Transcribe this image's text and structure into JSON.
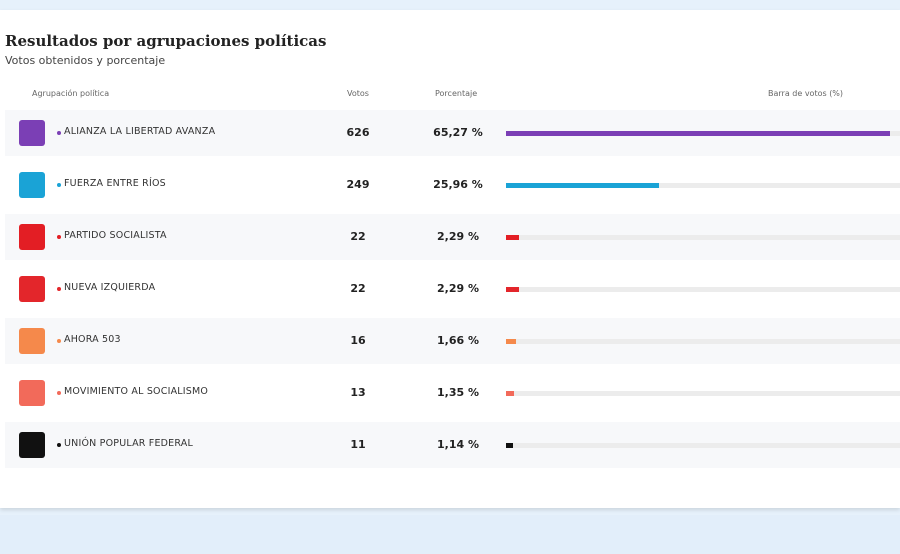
{
  "header": {
    "title": "Resultados por agrupaciones políticas",
    "subtitle": "Votos obtenidos y porcentaje"
  },
  "table": {
    "columns": [
      "Agrupación política",
      "Votos",
      "Porcentaje",
      "Barra de votos (%)"
    ],
    "rows": [
      {
        "name": "ALIANZA LA LIBERTAD AVANZA",
        "votes": 626,
        "percent": 65.27,
        "percent_label": "65,27 %",
        "color": "#7b3fb5"
      },
      {
        "name": "FUERZA ENTRE RÍOS",
        "votes": 249,
        "percent": 25.96,
        "percent_label": "25,96 %",
        "color": "#1aa3d6"
      },
      {
        "name": "PARTIDO SOCIALISTA",
        "votes": 22,
        "percent": 2.29,
        "percent_label": "2,29 %",
        "color": "#e31e24"
      },
      {
        "name": "NUEVA IZQUIERDA",
        "votes": 22,
        "percent": 2.29,
        "percent_label": "2,29 %",
        "color": "#e3262b"
      },
      {
        "name": "AHORA 503",
        "votes": 16,
        "percent": 1.66,
        "percent_label": "1,66 %",
        "color": "#f5894b"
      },
      {
        "name": "MOVIMIENTO AL SOCIALISMO",
        "votes": 13,
        "percent": 1.35,
        "percent_label": "1,35 %",
        "color": "#f26a5a"
      },
      {
        "name": "UNIÓN POPULAR FEDERAL",
        "votes": 11,
        "percent": 1.14,
        "percent_label": "1,14 %",
        "color": "#111111"
      }
    ]
  }
}
